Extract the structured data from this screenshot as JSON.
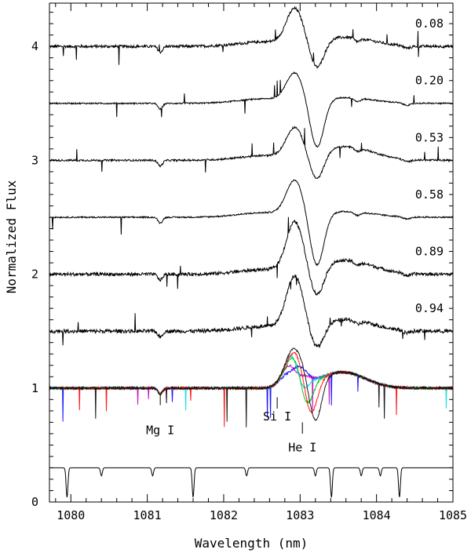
{
  "chart_data": {
    "type": "line",
    "title": "",
    "xlabel": "Wavelength (nm)",
    "ylabel": "Normalized Flux",
    "xlim": [
      1079.72,
      1085.0
    ],
    "ylim": [
      0,
      4.38
    ],
    "xticks": [
      1080,
      1081,
      1082,
      1083,
      1084,
      1085
    ],
    "yticks": [
      0,
      1,
      2,
      3,
      4
    ],
    "grid": false,
    "series": [
      {
        "name": "0.08",
        "offset": 4.0,
        "emission": 0.3,
        "absorption": 0.24,
        "wing": 0.08,
        "noise": 0.012,
        "color": "#000000"
      },
      {
        "name": "0.20",
        "offset": 3.5,
        "emission": 0.24,
        "absorption": 0.42,
        "wing": 0.05,
        "noise": 0.006,
        "color": "#000000"
      },
      {
        "name": "0.53",
        "offset": 3.0,
        "emission": 0.25,
        "absorption": 0.24,
        "wing": 0.12,
        "noise": 0.008,
        "color": "#000000"
      },
      {
        "name": "0.58",
        "offset": 2.5,
        "emission": 0.3,
        "absorption": 0.46,
        "wing": 0.05,
        "noise": 0.006,
        "color": "#000000"
      },
      {
        "name": "0.89",
        "offset": 2.0,
        "emission": 0.42,
        "absorption": 0.26,
        "wing": 0.12,
        "noise": 0.014,
        "color": "#000000"
      },
      {
        "name": "0.94",
        "offset": 1.5,
        "emission": 0.45,
        "absorption": 0.21,
        "wing": 0.1,
        "noise": 0.016,
        "color": "#000000"
      }
    ],
    "overlay_series": [
      {
        "name": "overlay-blue",
        "color": "#0000ff"
      },
      {
        "name": "overlay-magenta",
        "color": "#c000c0"
      },
      {
        "name": "overlay-cyan",
        "color": "#00e0e0"
      },
      {
        "name": "overlay-green",
        "color": "#00c000"
      },
      {
        "name": "overlay-red",
        "color": "#ff0000"
      },
      {
        "name": "overlay-black",
        "color": "#000000"
      }
    ],
    "telluric_reference": {
      "offset": 0.3,
      "lines": [
        1079.95,
        1080.4,
        1081.07,
        1081.6,
        1082.3,
        1083.2,
        1083.41,
        1083.8,
        1084.05,
        1084.3
      ]
    },
    "annotations": [
      {
        "text": "Mg I",
        "x": 1081.17
      },
      {
        "text": "Si I",
        "x": 1082.7
      },
      {
        "text": "He I",
        "x": 1083.03
      }
    ]
  }
}
